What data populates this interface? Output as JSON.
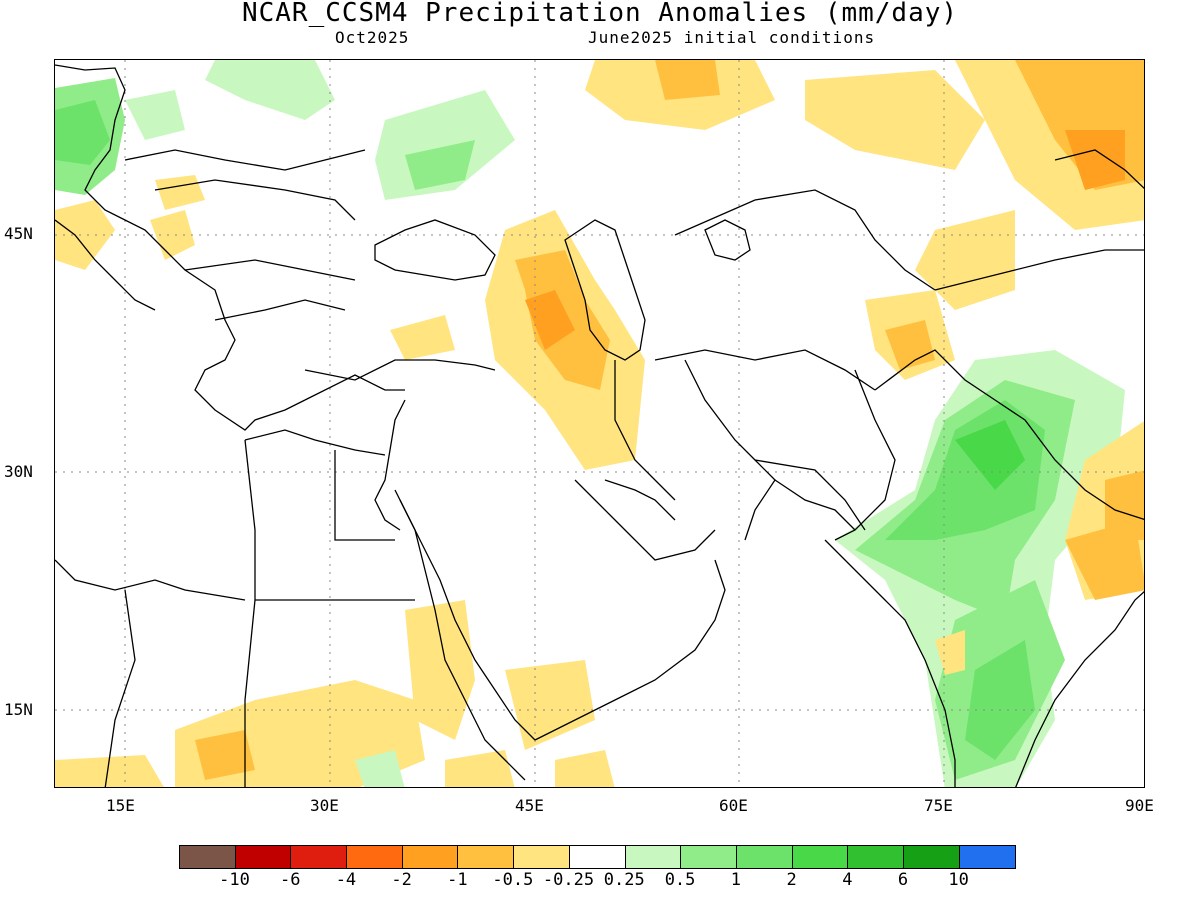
{
  "title": "NCAR_CCSM4 Precipitation Anomalies (mm/day)",
  "subtitle_left": "Oct2025",
  "subtitle_right": "June2025 initial conditions",
  "lat_labels": [
    "45N",
    "30N",
    "15N"
  ],
  "lon_labels": [
    "15E",
    "30E",
    "45E",
    "60E",
    "75E",
    "90E"
  ],
  "colorbar": {
    "colors": [
      "#7a5548",
      "#c00000",
      "#e01e10",
      "#ff6a10",
      "#ffa020",
      "#ffc040",
      "#ffe480",
      "#ffffff",
      "#c8f8c0",
      "#90ec88",
      "#6ce26a",
      "#48d848",
      "#30c030",
      "#16a016",
      "#2070f0"
    ],
    "labels": [
      "-10",
      "-6",
      "-4",
      "-2",
      "-1",
      "-0.5",
      "-0.25",
      "0.25",
      "0.5",
      "1",
      "2",
      "4",
      "6",
      "10"
    ]
  }
}
